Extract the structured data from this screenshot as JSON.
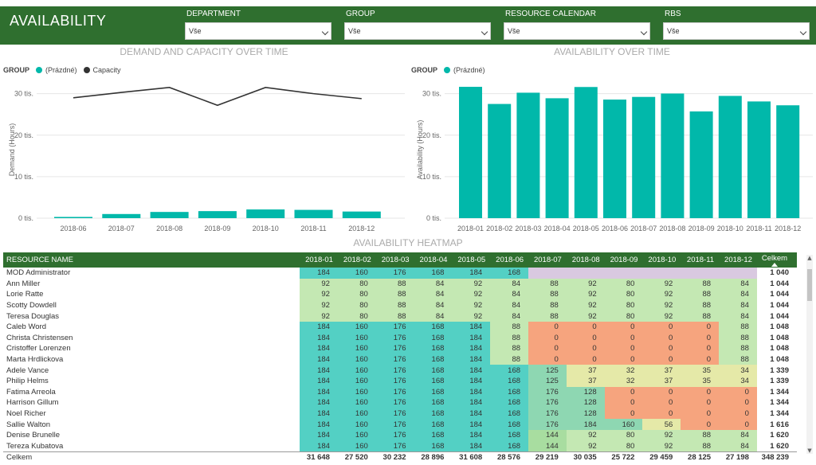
{
  "app": {
    "title": "AVAILABILITY"
  },
  "filters": [
    {
      "label": "DEPARTMENT",
      "value": "Vše"
    },
    {
      "label": "GROUP",
      "value": "Vše"
    },
    {
      "label": "RESOURCE CALENDAR",
      "value": "Vše"
    },
    {
      "label": "RBS",
      "value": "Vše"
    }
  ],
  "colors": {
    "header": "#2f6f2f",
    "teal": "#01b8aa",
    "capacity_line": "#333333",
    "heat_blue": "#53d0c4",
    "heat_lightgreen": "#a8dda0",
    "heat_green": "#c4e8b3",
    "heat_orange": "#f6a47e",
    "heat_yellow": "#e5e9a8",
    "heat_midgreen": "#8ed7b2",
    "heat_empty": "#d9c9e0"
  },
  "demand_chart": {
    "title": "DEMAND AND CAPACITY OVER TIME",
    "legend_title": "GROUP",
    "legend": [
      {
        "name": "(Prázdné)",
        "color": "#01b8aa"
      },
      {
        "name": "Capacity",
        "color": "#333333"
      }
    ],
    "y_axis_label": "Demand (Hours)",
    "y_ticks": [
      "0 tis.",
      "10 tis.",
      "20 tis.",
      "30 tis."
    ]
  },
  "availability_chart": {
    "title": "AVAILABILITY OVER TIME",
    "legend_title": "GROUP",
    "legend": [
      {
        "name": "(Prázdné)",
        "color": "#01b8aa"
      }
    ],
    "y_axis_label": "Availability (Hours)",
    "y_ticks": [
      "0 tis.",
      "10 tis.",
      "20 tis.",
      "30 tis."
    ]
  },
  "chart_data": [
    {
      "type": "bar+line",
      "title": "DEMAND AND CAPACITY OVER TIME",
      "categories": [
        "2018-06",
        "2018-07",
        "2018-08",
        "2018-09",
        "2018-10",
        "2018-11",
        "2018-12"
      ],
      "series": [
        {
          "name": "(Prázdné)",
          "kind": "bar",
          "values": [
            300,
            1000,
            1500,
            1700,
            2100,
            2000,
            1600
          ]
        },
        {
          "name": "Capacity",
          "kind": "line",
          "values": [
            29000,
            30300,
            31500,
            27200,
            31500,
            30000,
            28800
          ]
        }
      ],
      "ylabel": "Demand (Hours)",
      "ylim": [
        0,
        33000
      ]
    },
    {
      "type": "bar",
      "title": "AVAILABILITY OVER TIME",
      "categories": [
        "2018-01",
        "2018-02",
        "2018-03",
        "2018-04",
        "2018-05",
        "2018-06",
        "2018-07",
        "2018-08",
        "2018-09",
        "2018-10",
        "2018-11",
        "2018-12"
      ],
      "values": [
        31648,
        27520,
        30232,
        28896,
        31608,
        28576,
        29219,
        30035,
        25722,
        29459,
        28125,
        27198
      ],
      "ylabel": "Availability (Hours)",
      "ylim": [
        0,
        33000
      ]
    }
  ],
  "heatmap": {
    "title": "AVAILABILITY HEATMAP",
    "name_header": "RESOURCE NAME",
    "columns": [
      "2018-01",
      "2018-02",
      "2018-03",
      "2018-04",
      "2018-05",
      "2018-06",
      "2018-07",
      "2018-08",
      "2018-09",
      "2018-10",
      "2018-11",
      "2018-12"
    ],
    "total_header": "Celkem",
    "rows": [
      {
        "name": "MOD Administrator",
        "values": [
          "184",
          "160",
          "176",
          "168",
          "184",
          "168",
          "",
          "",
          "",
          "",
          "",
          ""
        ],
        "total": "1 040"
      },
      {
        "name": "Ann Miller",
        "values": [
          "92",
          "80",
          "88",
          "84",
          "92",
          "84",
          "88",
          "92",
          "80",
          "92",
          "88",
          "84"
        ],
        "total": "1 044"
      },
      {
        "name": "Lorie Ratte",
        "values": [
          "92",
          "80",
          "88",
          "84",
          "92",
          "84",
          "88",
          "92",
          "80",
          "92",
          "88",
          "84"
        ],
        "total": "1 044"
      },
      {
        "name": "Scotty Dowdell",
        "values": [
          "92",
          "80",
          "88",
          "84",
          "92",
          "84",
          "88",
          "92",
          "80",
          "92",
          "88",
          "84"
        ],
        "total": "1 044"
      },
      {
        "name": "Teresa Douglas",
        "values": [
          "92",
          "80",
          "88",
          "84",
          "92",
          "84",
          "88",
          "92",
          "80",
          "92",
          "88",
          "84"
        ],
        "total": "1 044"
      },
      {
        "name": "Caleb Word",
        "values": [
          "184",
          "160",
          "176",
          "168",
          "184",
          "88",
          "0",
          "0",
          "0",
          "0",
          "0",
          "88"
        ],
        "total": "1 048"
      },
      {
        "name": "Christa Christensen",
        "values": [
          "184",
          "160",
          "176",
          "168",
          "184",
          "88",
          "0",
          "0",
          "0",
          "0",
          "0",
          "88"
        ],
        "total": "1 048"
      },
      {
        "name": "Cristoffer Lorenzen",
        "values": [
          "184",
          "160",
          "176",
          "168",
          "184",
          "88",
          "0",
          "0",
          "0",
          "0",
          "0",
          "88"
        ],
        "total": "1 048"
      },
      {
        "name": "Marta Hrdlickova",
        "values": [
          "184",
          "160",
          "176",
          "168",
          "184",
          "88",
          "0",
          "0",
          "0",
          "0",
          "0",
          "88"
        ],
        "total": "1 048"
      },
      {
        "name": "Adele Vance",
        "values": [
          "184",
          "160",
          "176",
          "168",
          "184",
          "168",
          "125",
          "37",
          "32",
          "37",
          "35",
          "34"
        ],
        "total": "1 339"
      },
      {
        "name": "Philip Helms",
        "values": [
          "184",
          "160",
          "176",
          "168",
          "184",
          "168",
          "125",
          "37",
          "32",
          "37",
          "35",
          "34"
        ],
        "total": "1 339"
      },
      {
        "name": "Fatima Arreola",
        "values": [
          "184",
          "160",
          "176",
          "168",
          "184",
          "168",
          "176",
          "128",
          "0",
          "0",
          "0",
          "0"
        ],
        "total": "1 344"
      },
      {
        "name": "Harrison Gillum",
        "values": [
          "184",
          "160",
          "176",
          "168",
          "184",
          "168",
          "176",
          "128",
          "0",
          "0",
          "0",
          "0"
        ],
        "total": "1 344"
      },
      {
        "name": "Noel Richer",
        "values": [
          "184",
          "160",
          "176",
          "168",
          "184",
          "168",
          "176",
          "128",
          "0",
          "0",
          "0",
          "0"
        ],
        "total": "1 344"
      },
      {
        "name": "Sallie Walton",
        "values": [
          "184",
          "160",
          "176",
          "168",
          "184",
          "168",
          "176",
          "184",
          "160",
          "56",
          "0",
          "0"
        ],
        "total": "1 616"
      },
      {
        "name": "Denise Brunelle",
        "values": [
          "184",
          "160",
          "176",
          "168",
          "184",
          "168",
          "144",
          "92",
          "80",
          "92",
          "88",
          "84"
        ],
        "total": "1 620"
      },
      {
        "name": "Tereza Kubatova",
        "values": [
          "184",
          "160",
          "176",
          "168",
          "184",
          "168",
          "144",
          "92",
          "80",
          "92",
          "88",
          "84"
        ],
        "total": "1 620"
      }
    ],
    "total_row": {
      "name": "Celkem",
      "values": [
        "31 648",
        "27 520",
        "30 232",
        "28 896",
        "31 608",
        "28 576",
        "29 219",
        "30 035",
        "25 722",
        "29 459",
        "28 125",
        "27 198"
      ],
      "total": "348 239"
    }
  }
}
